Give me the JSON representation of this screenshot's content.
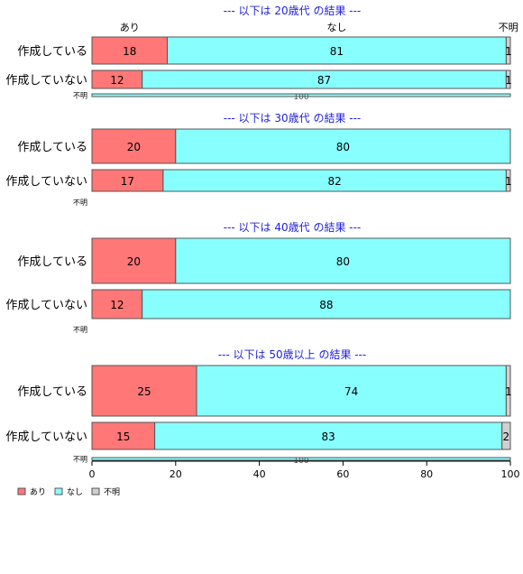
{
  "chart_data": {
    "type": "bar",
    "orientation": "horizontal-stacked",
    "xlim": [
      0,
      100
    ],
    "x_ticks": [
      "0",
      "20",
      "40",
      "60",
      "80",
      "100"
    ],
    "legend_position": "bottom-left",
    "legend": [
      {
        "name": "あり",
        "color": "#FF7777"
      },
      {
        "name": "なし",
        "color": "#88FFFF"
      },
      {
        "name": "不明",
        "color": "#D0D0D0"
      }
    ],
    "top_labels": [
      "あり",
      "なし",
      "不明"
    ],
    "panels": [
      {
        "title": "--- 以下は 20歳代 の結果 ---",
        "rows": [
          {
            "label": "作成している",
            "values": [
              18,
              81,
              1
            ]
          },
          {
            "label": "作成していない",
            "values": [
              12,
              87,
              1
            ]
          },
          {
            "label": "不明",
            "values": [
              0,
              100,
              0
            ]
          }
        ]
      },
      {
        "title": "--- 以下は 30歳代 の結果 ---",
        "rows": [
          {
            "label": "作成している",
            "values": [
              20,
              80,
              0
            ]
          },
          {
            "label": "作成していない",
            "values": [
              17,
              82,
              1
            ]
          },
          {
            "label": "不明",
            "values": [
              0,
              0,
              0
            ]
          }
        ]
      },
      {
        "title": "--- 以下は 40歳代 の結果 ---",
        "rows": [
          {
            "label": "作成している",
            "values": [
              20,
              80,
              0
            ]
          },
          {
            "label": "作成していない",
            "values": [
              12,
              88,
              0
            ]
          },
          {
            "label": "不明",
            "values": [
              0,
              0,
              0
            ]
          }
        ]
      },
      {
        "title": "--- 以下は 50歳以上 の結果 ---",
        "rows": [
          {
            "label": "作成している",
            "values": [
              25,
              74,
              1
            ]
          },
          {
            "label": "作成していない",
            "values": [
              15,
              83,
              2
            ]
          },
          {
            "label": "不明",
            "values": [
              0,
              100,
              0
            ]
          }
        ]
      }
    ]
  }
}
